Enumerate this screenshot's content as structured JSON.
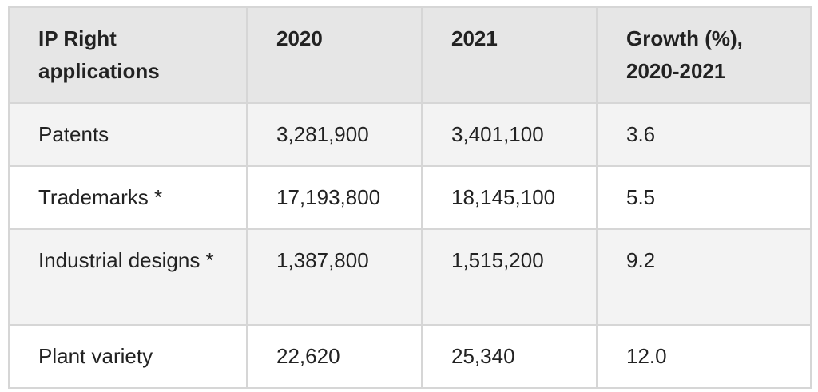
{
  "table": {
    "header": [
      "IP Right applications",
      "2020",
      "2021",
      "Growth (%), 2020-2021"
    ],
    "rows": [
      [
        "Patents",
        "3,281,900",
        "3,401,100",
        "3.6"
      ],
      [
        "Trademarks *",
        "17,193,800",
        "18,145,100",
        "5.5"
      ],
      [
        "Industrial designs *",
        "1,387,800",
        "1,515,200",
        "9.2"
      ],
      [
        "Plant variety",
        "22,620",
        "25,340",
        "12.0"
      ]
    ]
  }
}
